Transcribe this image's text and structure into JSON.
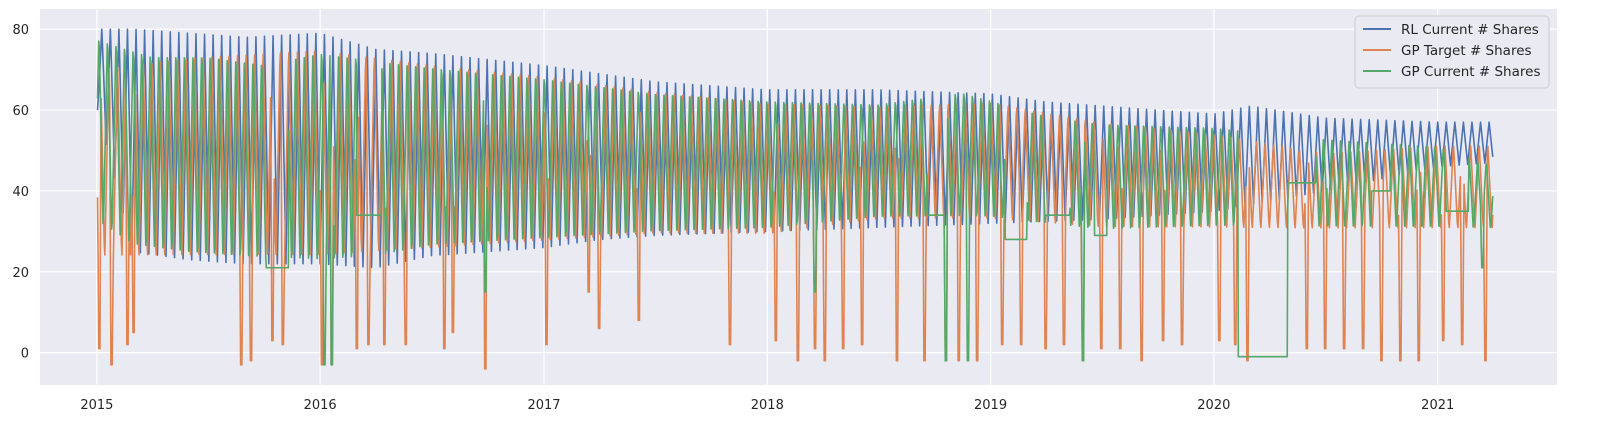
{
  "chart_data": {
    "type": "line",
    "title": "",
    "xlabel": "",
    "ylabel": "",
    "x_axis": {
      "kind": "date",
      "range": [
        "2014-09-30",
        "2021-07-15"
      ],
      "ticks": [
        "2015-01-01",
        "2016-01-01",
        "2017-01-01",
        "2018-01-01",
        "2019-01-01",
        "2020-01-01",
        "2021-01-01"
      ],
      "tick_labels": [
        "2015",
        "2016",
        "2017",
        "2018",
        "2019",
        "2020",
        "2021"
      ]
    },
    "y_axis": {
      "range": [
        -8,
        85
      ],
      "ticks": [
        0,
        20,
        40,
        60,
        80
      ],
      "tick_labels": [
        "0",
        "20",
        "40",
        "60",
        "80"
      ]
    },
    "grid": true,
    "style": "seaborn darkgrid",
    "legend": "top-right",
    "data_start": "2015-01-02",
    "data_end": "2021-04-01",
    "data_note": "daily series, dense oscillation; envelopes below approximated from the plot",
    "series": [
      {
        "name": "RL Current # Shares",
        "color": "#4c72b0",
        "period_days": 14,
        "upper_envelope": [
          [
            "2015-01-02",
            80
          ],
          [
            "2015-03-01",
            80
          ],
          [
            "2015-06-01",
            79
          ],
          [
            "2015-09-01",
            78
          ],
          [
            "2016-01-01",
            79
          ],
          [
            "2016-04-01",
            75
          ],
          [
            "2016-07-01",
            74
          ],
          [
            "2017-01-01",
            71
          ],
          [
            "2017-04-01",
            69
          ],
          [
            "2017-07-01",
            67
          ],
          [
            "2018-01-01",
            65
          ],
          [
            "2018-07-01",
            65
          ],
          [
            "2019-01-01",
            64
          ],
          [
            "2019-04-01",
            62
          ],
          [
            "2019-07-01",
            61
          ],
          [
            "2020-01-01",
            59
          ],
          [
            "2020-03-01",
            61
          ],
          [
            "2020-07-01",
            58
          ],
          [
            "2021-01-01",
            57
          ],
          [
            "2021-04-01",
            57
          ]
        ],
        "lower_envelope": [
          [
            "2015-01-02",
            60
          ],
          [
            "2015-03-01",
            25
          ],
          [
            "2015-06-01",
            23
          ],
          [
            "2015-09-01",
            22
          ],
          [
            "2016-01-01",
            22
          ],
          [
            "2016-04-01",
            21
          ],
          [
            "2016-07-01",
            24
          ],
          [
            "2017-01-01",
            26
          ],
          [
            "2017-04-01",
            28
          ],
          [
            "2017-07-01",
            29
          ],
          [
            "2018-01-01",
            30
          ],
          [
            "2018-07-01",
            31
          ],
          [
            "2019-01-01",
            32
          ],
          [
            "2019-07-01",
            33
          ],
          [
            "2020-01-01",
            35
          ],
          [
            "2020-07-01",
            40
          ],
          [
            "2021-01-01",
            46
          ],
          [
            "2021-04-01",
            47
          ]
        ]
      },
      {
        "name": "GP Target # Shares",
        "color": "#dd8452",
        "period_days": 14,
        "upper_envelope": [
          [
            "2015-01-02",
            72
          ],
          [
            "2015-06-01",
            75
          ],
          [
            "2016-01-01",
            77
          ],
          [
            "2016-07-01",
            73
          ],
          [
            "2017-01-01",
            70
          ],
          [
            "2017-07-01",
            66
          ],
          [
            "2018-01-01",
            63
          ],
          [
            "2018-07-01",
            62
          ],
          [
            "2019-01-01",
            63
          ],
          [
            "2019-07-01",
            58
          ],
          [
            "2020-01-01",
            55
          ],
          [
            "2020-07-01",
            50
          ],
          [
            "2021-01-01",
            52
          ],
          [
            "2021-04-01",
            52
          ]
        ],
        "lower_envelope": [
          [
            "2015-01-02",
            22
          ],
          [
            "2015-06-01",
            22
          ],
          [
            "2016-01-01",
            22
          ],
          [
            "2016-07-01",
            24
          ],
          [
            "2017-01-01",
            26
          ],
          [
            "2017-07-01",
            28
          ],
          [
            "2018-01-01",
            28
          ],
          [
            "2018-07-01",
            32
          ],
          [
            "2019-01-01",
            32
          ],
          [
            "2019-07-01",
            30
          ],
          [
            "2020-01-01",
            30
          ],
          [
            "2020-07-01",
            30
          ],
          [
            "2021-01-01",
            30
          ],
          [
            "2021-04-01",
            30
          ]
        ],
        "dips": [
          [
            "2015-01-05",
            1
          ],
          [
            "2015-01-25",
            -3
          ],
          [
            "2015-02-20",
            2
          ],
          [
            "2015-03-02",
            5
          ],
          [
            "2015-08-25",
            -3
          ],
          [
            "2015-09-10",
            -2
          ],
          [
            "2015-10-15",
            3
          ],
          [
            "2015-11-01",
            2
          ],
          [
            "2016-01-04",
            -3
          ],
          [
            "2016-01-20",
            -3
          ],
          [
            "2016-03-01",
            1
          ],
          [
            "2016-03-20",
            2
          ],
          [
            "2016-04-15",
            2
          ],
          [
            "2016-05-20",
            2
          ],
          [
            "2016-07-22",
            1
          ],
          [
            "2016-08-05",
            5
          ],
          [
            "2016-09-27",
            -4
          ],
          [
            "2017-01-05",
            2
          ],
          [
            "2017-03-15",
            15
          ],
          [
            "2017-04-01",
            6
          ],
          [
            "2017-06-05",
            8
          ],
          [
            "2017-11-01",
            2
          ],
          [
            "2018-01-15",
            3
          ],
          [
            "2018-02-20",
            -2
          ],
          [
            "2018-03-20",
            1
          ],
          [
            "2018-04-05",
            -2
          ],
          [
            "2018-05-05",
            1
          ],
          [
            "2018-06-05",
            2
          ],
          [
            "2018-08-01",
            -2
          ],
          [
            "2018-09-15",
            -2
          ],
          [
            "2018-10-20",
            -2
          ],
          [
            "2018-11-10",
            -2
          ],
          [
            "2018-12-10",
            -2
          ],
          [
            "2019-01-20",
            2
          ],
          [
            "2019-02-20",
            2
          ],
          [
            "2019-04-01",
            1
          ],
          [
            "2019-05-01",
            2
          ],
          [
            "2019-06-01",
            -2
          ],
          [
            "2019-07-01",
            1
          ],
          [
            "2019-08-01",
            1
          ],
          [
            "2019-09-05",
            -2
          ],
          [
            "2019-10-10",
            3
          ],
          [
            "2019-11-10",
            2
          ],
          [
            "2020-01-10",
            3
          ],
          [
            "2020-02-05",
            2
          ],
          [
            "2020-02-25",
            -2
          ],
          [
            "2020-06-01",
            1
          ],
          [
            "2020-07-01",
            1
          ],
          [
            "2020-08-01",
            1
          ],
          [
            "2020-09-01",
            1
          ],
          [
            "2020-10-01",
            -2
          ],
          [
            "2020-11-01",
            -2
          ],
          [
            "2020-12-01",
            -2
          ],
          [
            "2021-01-10",
            3
          ],
          [
            "2021-02-10",
            2
          ],
          [
            "2021-03-20",
            -2
          ]
        ]
      },
      {
        "name": "GP Current # Shares",
        "color": "#55a868",
        "period_days": 14,
        "upper_envelope": [
          [
            "2015-01-02",
            80
          ],
          [
            "2015-04-01",
            76
          ],
          [
            "2015-07-01",
            76
          ],
          [
            "2015-10-01",
            74
          ],
          [
            "2016-01-01",
            77
          ],
          [
            "2016-04-01",
            75
          ],
          [
            "2016-07-01",
            73
          ],
          [
            "2017-01-01",
            70
          ],
          [
            "2017-07-01",
            66
          ],
          [
            "2018-01-01",
            64
          ],
          [
            "2018-07-01",
            63
          ],
          [
            "2018-11-15",
            66
          ],
          [
            "2019-04-01",
            60
          ],
          [
            "2019-07-01",
            58
          ],
          [
            "2020-01-01",
            57
          ],
          [
            "2020-07-01",
            54
          ],
          [
            "2021-01-01",
            52
          ],
          [
            "2021-04-01",
            47
          ]
        ],
        "lower_envelope": [
          [
            "2015-01-02",
            30
          ],
          [
            "2015-03-01",
            24
          ],
          [
            "2015-06-01",
            22
          ],
          [
            "2015-09-01",
            21
          ],
          [
            "2016-01-01",
            20
          ],
          [
            "2016-04-01",
            21
          ],
          [
            "2016-07-01",
            24
          ],
          [
            "2017-01-01",
            26
          ],
          [
            "2017-07-01",
            28
          ],
          [
            "2018-01-01",
            29
          ],
          [
            "2018-07-01",
            32
          ],
          [
            "2019-01-01",
            32
          ],
          [
            "2019-07-01",
            29
          ],
          [
            "2020-01-01",
            30
          ],
          [
            "2020-07-01",
            30
          ],
          [
            "2021-01-01",
            30
          ],
          [
            "2021-04-01",
            30
          ]
        ],
        "flat_segments": [
          [
            "2015-10-05",
            "2015-11-10",
            21
          ],
          [
            "2016-03-01",
            "2016-04-10",
            34
          ],
          [
            "2018-09-20",
            "2018-10-20",
            34
          ],
          [
            "2019-01-25",
            "2019-03-01",
            28
          ],
          [
            "2019-04-01",
            "2019-05-10",
            34
          ],
          [
            "2019-06-20",
            "2019-07-10",
            29
          ],
          [
            "2020-02-10",
            "2020-05-01",
            -1
          ],
          [
            "2020-05-01",
            "2020-06-15",
            42
          ],
          [
            "2020-09-15",
            "2020-10-15",
            40
          ],
          [
            "2021-01-15",
            "2021-02-20",
            35
          ]
        ],
        "dips": [
          [
            "2016-01-08",
            -3
          ],
          [
            "2016-01-20",
            -3
          ],
          [
            "2016-09-27",
            15
          ],
          [
            "2018-03-20",
            15
          ],
          [
            "2018-10-20",
            -2
          ],
          [
            "2018-11-25",
            -2
          ],
          [
            "2019-06-01",
            -2
          ],
          [
            "2021-03-15",
            21
          ]
        ]
      }
    ]
  }
}
